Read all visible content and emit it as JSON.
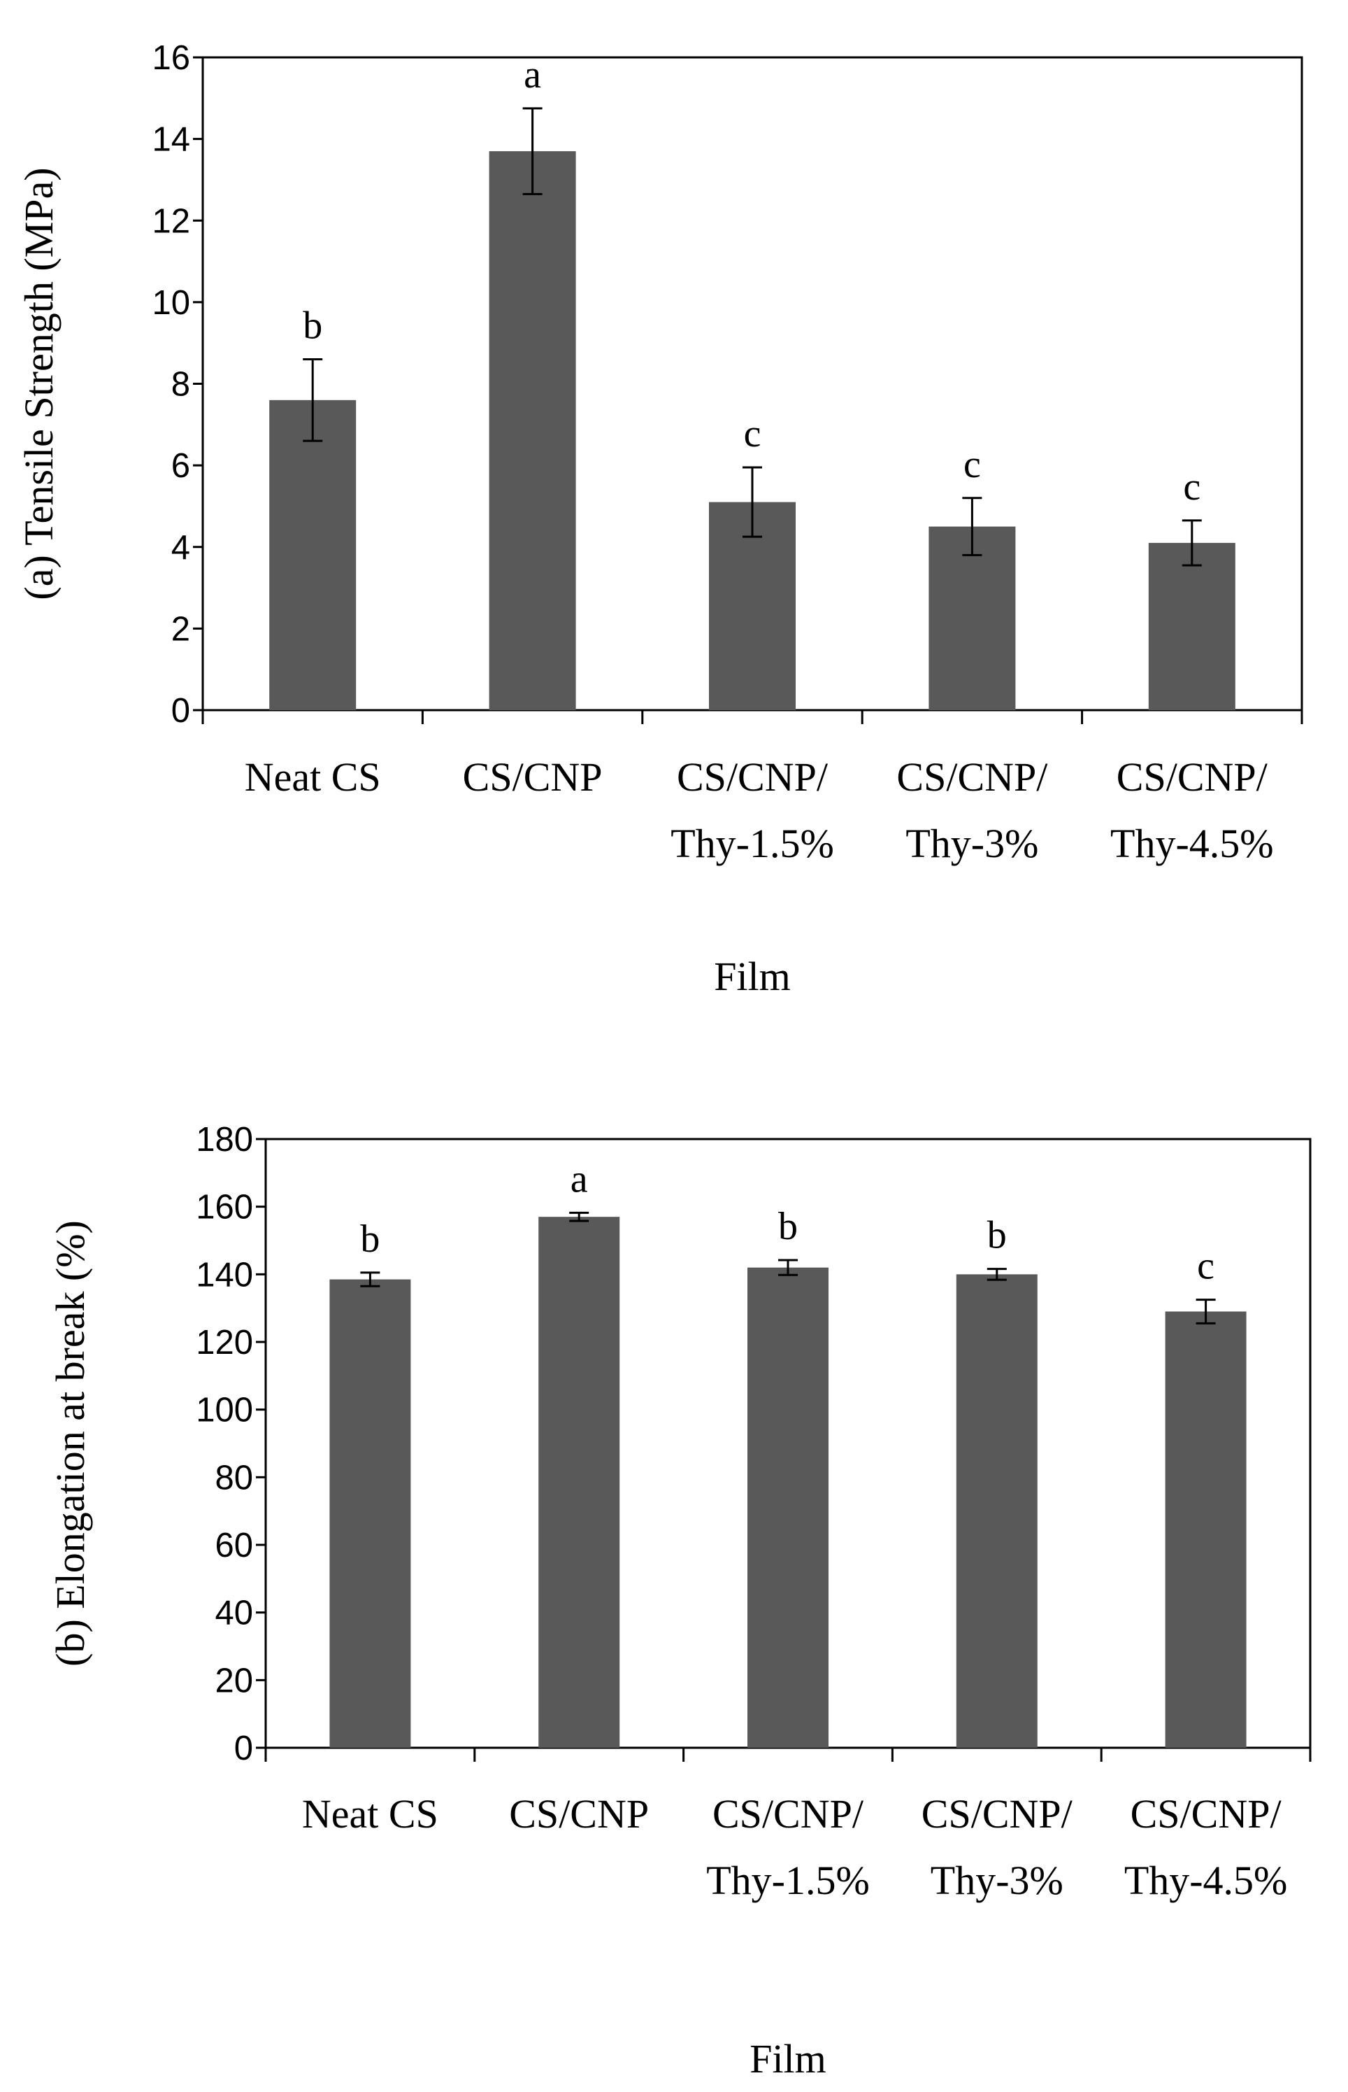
{
  "chart_data": [
    {
      "type": "bar",
      "categories": [
        [
          "Neat CS"
        ],
        [
          "CS/CNP"
        ],
        [
          "CS/CNP/",
          "Thy-1.5%"
        ],
        [
          "CS/CNP/",
          "Thy-3%"
        ],
        [
          "CS/CNP/",
          "Thy-4.5%"
        ]
      ],
      "values": [
        7.6,
        13.7,
        5.1,
        4.5,
        4.1
      ],
      "errors": [
        1.0,
        1.05,
        0.85,
        0.7,
        0.55
      ],
      "significance": [
        "b",
        "a",
        "c",
        "c",
        "c"
      ],
      "ylabel": "(a) Tensile Strength (MPa)",
      "xlabel": "Film",
      "ylim": [
        0,
        16
      ],
      "yticks": [
        0,
        2,
        4,
        6,
        8,
        10,
        12,
        14,
        16
      ],
      "bar_color": "#595959",
      "grid": false
    },
    {
      "type": "bar",
      "categories": [
        [
          "Neat CS"
        ],
        [
          "CS/CNP"
        ],
        [
          "CS/CNP/",
          "Thy-1.5%"
        ],
        [
          "CS/CNP/",
          "Thy-3%"
        ],
        [
          "CS/CNP/",
          "Thy-4.5%"
        ]
      ],
      "values": [
        138.5,
        157,
        142,
        140,
        129
      ],
      "errors": [
        2.0,
        1.2,
        2.2,
        1.6,
        3.5
      ],
      "significance": [
        "b",
        "a",
        "b",
        "b",
        "c"
      ],
      "ylabel": "(b) Elongation at break (%)",
      "xlabel": "Film",
      "ylim": [
        0,
        180
      ],
      "yticks": [
        0,
        20,
        40,
        60,
        80,
        100,
        120,
        140,
        160,
        180
      ],
      "bar_color": "#595959",
      "grid": false
    }
  ]
}
